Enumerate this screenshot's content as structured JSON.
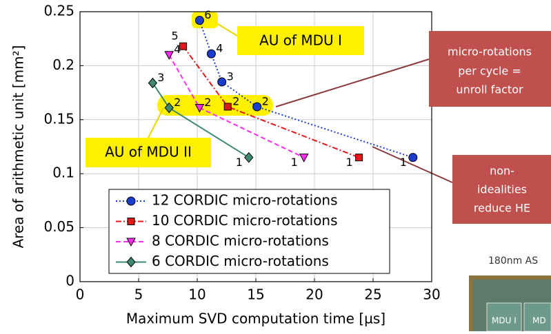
{
  "chart_data": {
    "type": "line",
    "x_label": "Maximum SVD computation time [µs]",
    "y_label": "Area of arithmetic unit [mm²]",
    "xlim": [
      0,
      30
    ],
    "xticks": [
      0,
      5,
      10,
      15,
      20,
      25,
      30
    ],
    "ylim": [
      0,
      0.25
    ],
    "yticks": [
      0,
      0.05,
      0.1,
      0.15,
      0.2,
      0.25
    ],
    "grid": true,
    "legend": "lower center",
    "series": [
      {
        "name": "12 CORDIC micro-rotations",
        "color": "#1a3ccf",
        "marker": "circle",
        "dash": "2,3",
        "x": [
          10.2,
          11.2,
          12.1,
          15.1,
          28.4
        ],
        "values": [
          0.242,
          0.211,
          0.185,
          0.162,
          0.115
        ],
        "point_labels": [
          "6",
          "4",
          "3",
          "2",
          "1"
        ]
      },
      {
        "name": "10 CORDIC micro-rotations",
        "color": "#e01818",
        "marker": "square",
        "dash": "8,3,2,3",
        "x": [
          8.8,
          12.6,
          23.8
        ],
        "values": [
          0.218,
          0.162,
          0.115
        ],
        "point_labels": [
          "5",
          "2",
          "1"
        ]
      },
      {
        "name": "8 CORDIC micro-rotations",
        "color": "#ff2cf0",
        "marker": "triangle",
        "dash": "7,4",
        "x": [
          7.6,
          10.2,
          19.1
        ],
        "values": [
          0.21,
          0.161,
          0.115
        ],
        "point_labels": [
          "4",
          "2",
          "1"
        ]
      },
      {
        "name": "6 CORDIC micro-rotations",
        "color": "#3d8a6e",
        "marker": "diamond",
        "dash": "",
        "x": [
          6.2,
          7.6,
          14.4
        ],
        "values": [
          0.184,
          0.161,
          0.115
        ],
        "point_labels": [
          "3",
          "2",
          "1"
        ]
      }
    ]
  },
  "annotations": {
    "mdu1": "AU of MDU I",
    "mdu2": "AU of MDU II",
    "unroll": [
      "micro-rotations",
      "per cycle =",
      "unroll factor"
    ],
    "nonideal": [
      "non-",
      "idealities",
      "reduce HE"
    ],
    "process": "180nm AS",
    "chip": [
      "MDU I",
      "MD"
    ]
  }
}
